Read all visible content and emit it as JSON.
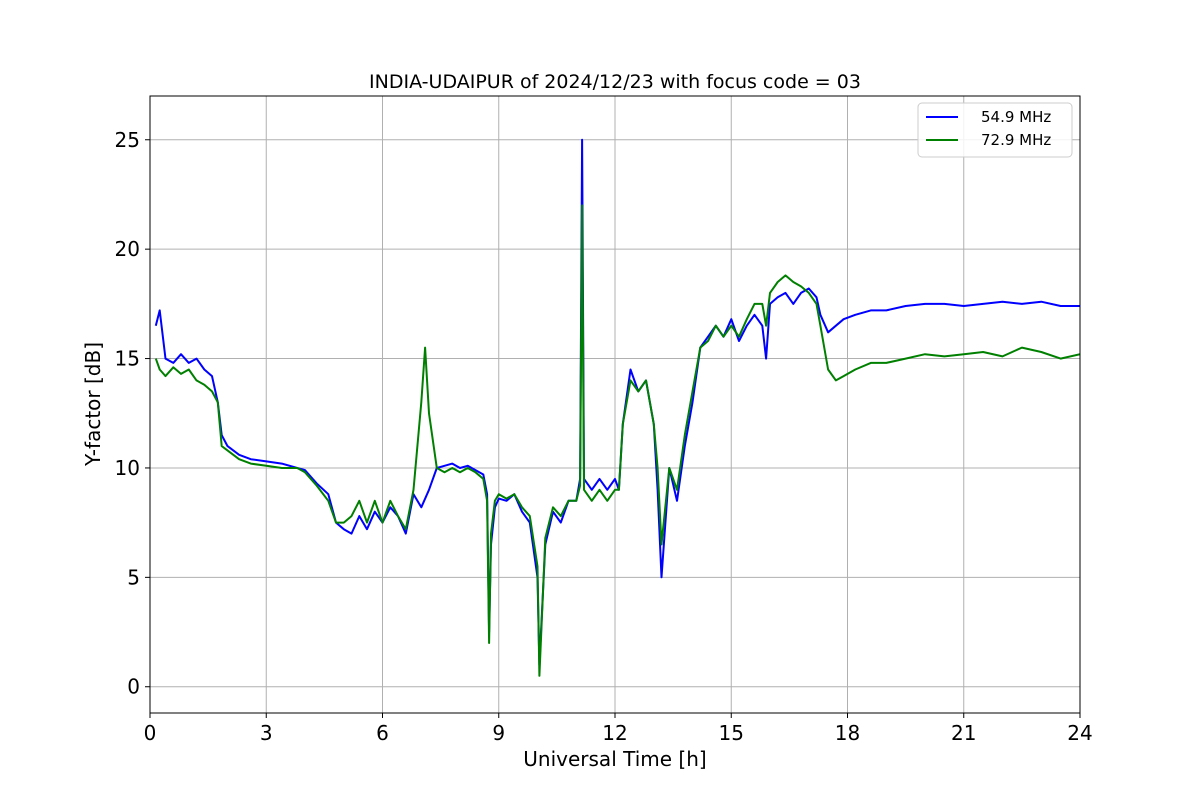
{
  "chart_data": {
    "type": "line",
    "title": "INDIA-UDAIPUR of 2024/12/23 with focus code = 03",
    "xlabel": "Universal Time [h]",
    "ylabel": "Y-factor [dB]",
    "xlim": [
      0,
      24
    ],
    "ylim": [
      -1.2,
      27
    ],
    "xticks": [
      "0",
      "3",
      "6",
      "9",
      "12",
      "15",
      "18",
      "21",
      "24"
    ],
    "yticks": [
      "0",
      "5",
      "10",
      "15",
      "20",
      "25"
    ],
    "grid": true,
    "legend_position": "top-right",
    "series": [
      {
        "name": "54.9 MHz",
        "color": "#0000ff",
        "x": [
          0.15,
          0.25,
          0.4,
          0.6,
          0.8,
          1.0,
          1.2,
          1.4,
          1.6,
          1.75,
          1.85,
          2.0,
          2.3,
          2.6,
          3.0,
          3.4,
          3.8,
          4.0,
          4.3,
          4.6,
          4.8,
          5.0,
          5.2,
          5.4,
          5.6,
          5.8,
          6.0,
          6.2,
          6.4,
          6.6,
          6.8,
          7.0,
          7.2,
          7.4,
          7.6,
          7.8,
          8.0,
          8.2,
          8.4,
          8.6,
          8.7,
          8.75,
          8.8,
          8.9,
          9.0,
          9.2,
          9.4,
          9.6,
          9.8,
          10.0,
          10.05,
          10.2,
          10.4,
          10.6,
          10.8,
          11.0,
          11.1,
          11.15,
          11.2,
          11.4,
          11.6,
          11.8,
          12.0,
          12.1,
          12.2,
          12.4,
          12.6,
          12.8,
          13.0,
          13.1,
          13.2,
          13.4,
          13.6,
          13.8,
          14.0,
          14.2,
          14.4,
          14.6,
          14.8,
          15.0,
          15.2,
          15.4,
          15.6,
          15.8,
          15.9,
          16.0,
          16.2,
          16.4,
          16.6,
          16.8,
          17.0,
          17.2,
          17.3,
          17.5,
          17.7,
          17.9,
          18.2,
          18.6,
          19.0,
          19.5,
          20.0,
          20.5,
          21.0,
          21.5,
          22.0,
          22.5,
          23.0,
          23.5,
          24.0
        ],
        "y": [
          16.5,
          17.2,
          15.0,
          14.8,
          15.2,
          14.8,
          15.0,
          14.5,
          14.2,
          13.0,
          11.5,
          11.0,
          10.6,
          10.4,
          10.3,
          10.2,
          10.0,
          9.9,
          9.3,
          8.8,
          7.5,
          7.2,
          7.0,
          7.8,
          7.2,
          8.0,
          7.5,
          8.2,
          7.8,
          7.0,
          8.8,
          8.2,
          9.0,
          10.0,
          10.1,
          10.2,
          10.0,
          10.1,
          9.9,
          9.7,
          8.8,
          2.5,
          6.5,
          8.2,
          8.6,
          8.5,
          8.8,
          8.0,
          7.5,
          5.0,
          1.0,
          6.5,
          8.0,
          7.5,
          8.5,
          8.5,
          9.5,
          25.0,
          9.5,
          9.0,
          9.5,
          9.0,
          9.5,
          9.0,
          12.0,
          14.5,
          13.5,
          14.0,
          12.0,
          9.0,
          5.0,
          10.0,
          8.5,
          11.0,
          13.0,
          15.5,
          16.0,
          16.5,
          16.0,
          16.8,
          15.8,
          16.5,
          17.0,
          16.5,
          15.0,
          17.5,
          17.8,
          18.0,
          17.5,
          18.0,
          18.2,
          17.8,
          17.0,
          16.2,
          16.5,
          16.8,
          17.0,
          17.2,
          17.2,
          17.4,
          17.5,
          17.5,
          17.4,
          17.5,
          17.6,
          17.5,
          17.6,
          17.4,
          17.4
        ]
      },
      {
        "name": "72.9 MHz",
        "color": "#008000",
        "x": [
          0.15,
          0.25,
          0.4,
          0.6,
          0.8,
          1.0,
          1.2,
          1.4,
          1.6,
          1.75,
          1.85,
          2.0,
          2.3,
          2.6,
          3.0,
          3.4,
          3.8,
          4.0,
          4.3,
          4.6,
          4.8,
          5.0,
          5.2,
          5.4,
          5.6,
          5.8,
          6.0,
          6.2,
          6.4,
          6.6,
          6.8,
          7.0,
          7.1,
          7.2,
          7.4,
          7.6,
          7.8,
          8.0,
          8.2,
          8.4,
          8.6,
          8.7,
          8.75,
          8.8,
          8.9,
          9.0,
          9.2,
          9.4,
          9.6,
          9.8,
          10.0,
          10.05,
          10.2,
          10.4,
          10.6,
          10.8,
          11.0,
          11.1,
          11.15,
          11.2,
          11.4,
          11.6,
          11.8,
          12.0,
          12.1,
          12.2,
          12.4,
          12.6,
          12.8,
          13.0,
          13.1,
          13.2,
          13.4,
          13.6,
          13.8,
          14.0,
          14.2,
          14.4,
          14.6,
          14.8,
          15.0,
          15.2,
          15.4,
          15.6,
          15.8,
          15.9,
          16.0,
          16.2,
          16.4,
          16.6,
          16.8,
          17.0,
          17.2,
          17.3,
          17.5,
          17.7,
          17.9,
          18.2,
          18.6,
          19.0,
          19.5,
          20.0,
          20.5,
          21.0,
          21.5,
          22.0,
          22.5,
          23.0,
          23.5,
          24.0
        ],
        "y": [
          15.0,
          14.5,
          14.2,
          14.6,
          14.3,
          14.5,
          14.0,
          13.8,
          13.5,
          13.0,
          11.0,
          10.8,
          10.4,
          10.2,
          10.1,
          10.0,
          10.0,
          9.8,
          9.2,
          8.5,
          7.5,
          7.5,
          7.8,
          8.5,
          7.5,
          8.5,
          7.5,
          8.5,
          7.8,
          7.2,
          9.0,
          13.0,
          15.5,
          12.5,
          10.0,
          9.8,
          10.0,
          9.8,
          10.0,
          9.8,
          9.5,
          8.5,
          2.0,
          7.0,
          8.5,
          8.8,
          8.6,
          8.8,
          8.2,
          7.8,
          5.5,
          0.5,
          6.8,
          8.2,
          7.8,
          8.5,
          8.5,
          9.2,
          22.0,
          9.0,
          8.5,
          9.0,
          8.5,
          9.0,
          9.0,
          12.0,
          14.0,
          13.5,
          14.0,
          12.0,
          10.0,
          6.5,
          10.0,
          9.0,
          11.5,
          13.5,
          15.5,
          15.8,
          16.5,
          16.0,
          16.5,
          16.0,
          16.8,
          17.5,
          17.5,
          16.5,
          18.0,
          18.5,
          18.8,
          18.5,
          18.3,
          18.0,
          17.5,
          16.5,
          14.5,
          14.0,
          14.2,
          14.5,
          14.8,
          14.8,
          15.0,
          15.2,
          15.1,
          15.2,
          15.3,
          15.1,
          15.5,
          15.3,
          15.0,
          15.2
        ]
      }
    ]
  }
}
